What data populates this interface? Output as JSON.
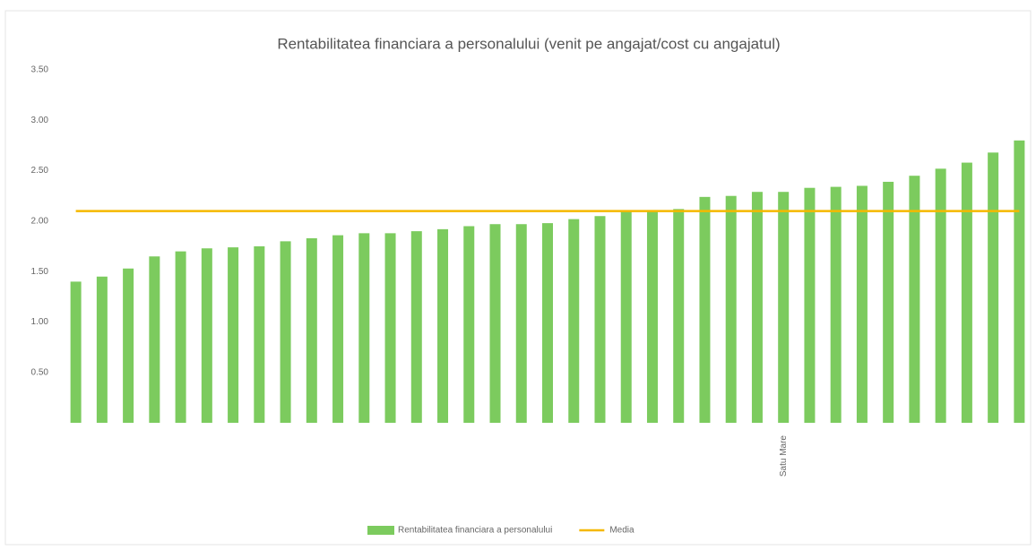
{
  "chart_data": {
    "type": "bar",
    "title": "Rentabilitatea financiara a personalului (venit pe angajat/cost cu angajatul)",
    "categories": [
      null,
      null,
      null,
      null,
      null,
      null,
      null,
      null,
      null,
      null,
      null,
      null,
      null,
      null,
      null,
      null,
      null,
      null,
      null,
      null,
      null,
      null,
      null,
      null,
      null,
      null,
      null,
      "Satu Mare",
      null,
      null,
      null,
      null,
      null,
      null,
      null,
      null,
      null
    ],
    "series": [
      {
        "name": "Rentabilitatea financiara a personalului",
        "type": "bar",
        "color": "#7ccb5e",
        "values": [
          1.4,
          1.45,
          1.53,
          1.65,
          1.7,
          1.73,
          1.74,
          1.75,
          1.8,
          1.83,
          1.86,
          1.88,
          1.88,
          1.9,
          1.92,
          1.95,
          1.97,
          1.97,
          1.98,
          2.02,
          2.05,
          2.1,
          2.11,
          2.12,
          2.24,
          2.25,
          2.29,
          2.29,
          2.33,
          2.34,
          2.35,
          2.39,
          2.45,
          2.52,
          2.58,
          2.68,
          2.8
        ]
      },
      {
        "name": "Media",
        "type": "line",
        "color": "#f5b800",
        "values": [
          2.1,
          2.1,
          2.1,
          2.1,
          2.1,
          2.1,
          2.1,
          2.1,
          2.1,
          2.1,
          2.1,
          2.1,
          2.1,
          2.1,
          2.1,
          2.1,
          2.1,
          2.1,
          2.1,
          2.1,
          2.1,
          2.1,
          2.1,
          2.1,
          2.1,
          2.1,
          2.1,
          2.1,
          2.1,
          2.1,
          2.1,
          2.1,
          2.1,
          2.1,
          2.1,
          2.1,
          2.1
        ]
      }
    ],
    "ylim": [
      0,
      3.5
    ],
    "yticks": [
      {
        "value": 0.5,
        "label": "0.50"
      },
      {
        "value": 1,
        "label": "1.00"
      },
      {
        "value": 1.5,
        "label": "1.50"
      },
      {
        "value": 2,
        "label": "2.00"
      },
      {
        "value": 2.5,
        "label": "2.50"
      },
      {
        "value": 3,
        "label": "3.00"
      },
      {
        "value": 3.5,
        "label": "3.50"
      }
    ],
    "legend": "bottom"
  }
}
